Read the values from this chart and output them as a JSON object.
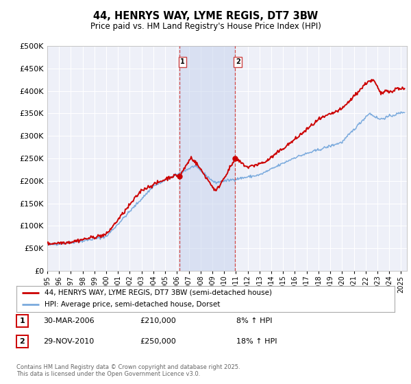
{
  "title": "44, HENRYS WAY, LYME REGIS, DT7 3BW",
  "subtitle": "Price paid vs. HM Land Registry's House Price Index (HPI)",
  "legend_line1": "44, HENRYS WAY, LYME REGIS, DT7 3BW (semi-detached house)",
  "legend_line2": "HPI: Average price, semi-detached house, Dorset",
  "property_color": "#cc0000",
  "hpi_color": "#7aaadd",
  "annotation1_date": 2006.23,
  "annotation1_price": 210000,
  "annotation1_text": "30-MAR-2006",
  "annotation1_info": "£210,000",
  "annotation1_hpi": "8% ↑ HPI",
  "annotation2_date": 2010.92,
  "annotation2_price": 250000,
  "annotation2_text": "29-NOV-2010",
  "annotation2_info": "£250,000",
  "annotation2_hpi": "18% ↑ HPI",
  "footer": "Contains HM Land Registry data © Crown copyright and database right 2025.\nThis data is licensed under the Open Government Licence v3.0.",
  "ylim": [
    0,
    500000
  ],
  "xlim_start": 1995.0,
  "xlim_end": 2025.5,
  "plot_bg_color": "#eef0f8",
  "grid_color": "#ffffff",
  "span_color": "#c8d4ee",
  "vline_color": "#cc4444"
}
